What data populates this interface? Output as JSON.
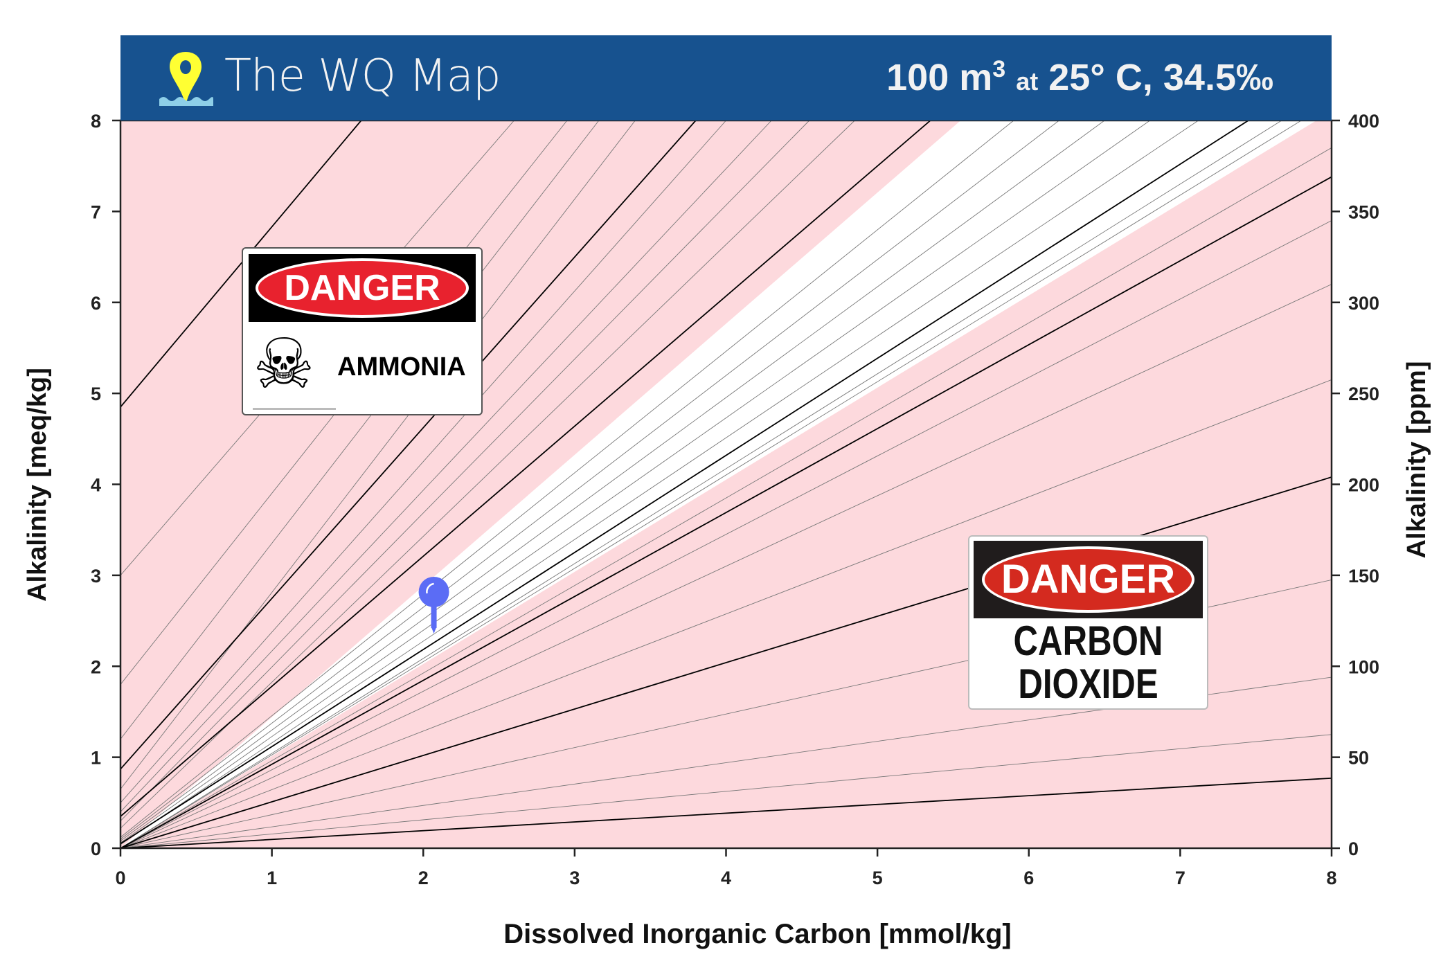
{
  "header": {
    "title": "The WQ Map",
    "volume": "100 m",
    "volume_sup": "3",
    "at": "at",
    "conditions": "25° C, 34.5‰",
    "colors": {
      "bar": "#17528f",
      "pin": "#ffff33",
      "water": "#8ecfe8"
    }
  },
  "signs": {
    "ammonia": {
      "header": "DANGER",
      "label": "AMMONIA",
      "icon": "skull-crossbones-icon"
    },
    "co2": {
      "header": "DANGER",
      "label_line1": "CARBON",
      "label_line2": "DIOXIDE"
    }
  },
  "chart_data": {
    "type": "line",
    "xlabel": "Dissolved Inorganic Carbon [mmol/kg]",
    "ylabel": "Alkalinity [meq/kg]",
    "y2label": "Alkalinity [ppm]",
    "xlim": [
      0,
      8
    ],
    "ylim": [
      0,
      8
    ],
    "y2lim": [
      0,
      400
    ],
    "xticks": [
      "0",
      "1",
      "2",
      "3",
      "4",
      "5",
      "6",
      "7",
      "8"
    ],
    "yticks": [
      "0",
      "1",
      "2",
      "3",
      "4",
      "5",
      "6",
      "7",
      "8"
    ],
    "y2ticks": [
      "0",
      "50",
      "100",
      "150",
      "200",
      "250",
      "300",
      "350",
      "400"
    ],
    "colors": {
      "danger_zone": "#fdd9dd",
      "safe_zone": "#ffffff",
      "major": "#000000",
      "minor": "#777777",
      "marker": "#5b6cf5"
    },
    "safe_zone": [
      [
        0,
        0
      ],
      [
        5.55,
        8
      ],
      [
        7.9,
        8
      ],
      [
        0,
        0
      ]
    ],
    "major_lines": [
      [
        [
          0,
          4.85
        ],
        [
          1.59,
          8
        ]
      ],
      [
        [
          0,
          0.87
        ],
        [
          3.8,
          8
        ]
      ],
      [
        [
          0,
          0.35
        ],
        [
          5.35,
          8
        ]
      ],
      [
        [
          0,
          0.05
        ],
        [
          7.45,
          8
        ]
      ],
      [
        [
          0,
          0
        ],
        [
          8,
          7.38
        ]
      ],
      [
        [
          0,
          0
        ],
        [
          8,
          4.08
        ]
      ],
      [
        [
          0,
          0
        ],
        [
          8,
          0.77
        ]
      ]
    ],
    "minor_lines": [
      [
        [
          0,
          3.0
        ],
        [
          2.6,
          8
        ]
      ],
      [
        [
          0,
          1.8
        ],
        [
          2.95,
          8
        ]
      ],
      [
        [
          0,
          1.2
        ],
        [
          3.16,
          8
        ]
      ],
      [
        [
          0,
          0.65
        ],
        [
          3.4,
          8
        ]
      ],
      [
        [
          0,
          0.5
        ],
        [
          4.0,
          8
        ]
      ],
      [
        [
          0,
          0.4
        ],
        [
          4.3,
          8
        ]
      ],
      [
        [
          0,
          0.3
        ],
        [
          4.55,
          8
        ]
      ],
      [
        [
          0,
          0.22
        ],
        [
          4.85,
          8
        ]
      ],
      [
        [
          0,
          0.12
        ],
        [
          5.9,
          8
        ]
      ],
      [
        [
          0,
          0.1
        ],
        [
          6.2,
          8
        ]
      ],
      [
        [
          0,
          0.08
        ],
        [
          6.5,
          8
        ]
      ],
      [
        [
          0,
          0.06
        ],
        [
          6.8,
          8
        ]
      ],
      [
        [
          0,
          0.04
        ],
        [
          7.12,
          8
        ]
      ],
      [
        [
          0,
          0
        ],
        [
          7.67,
          8
        ]
      ],
      [
        [
          0,
          0
        ],
        [
          7.8,
          8
        ]
      ],
      [
        [
          0,
          0
        ],
        [
          8,
          7.7
        ]
      ],
      [
        [
          0,
          0
        ],
        [
          8,
          6.9
        ]
      ],
      [
        [
          0,
          0
        ],
        [
          8,
          6.2
        ]
      ],
      [
        [
          0,
          0
        ],
        [
          8,
          5.15
        ]
      ],
      [
        [
          0,
          0
        ],
        [
          8,
          2.95
        ]
      ],
      [
        [
          0,
          0
        ],
        [
          8,
          1.88
        ]
      ],
      [
        [
          0,
          0
        ],
        [
          8,
          1.25
        ]
      ]
    ],
    "marker": {
      "x": 2.07,
      "y": 2.36
    }
  }
}
